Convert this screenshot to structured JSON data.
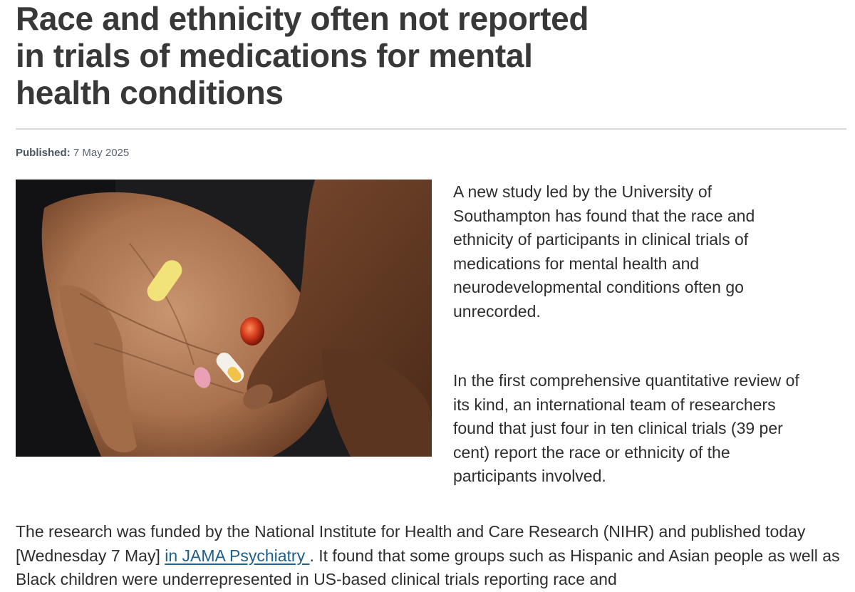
{
  "article": {
    "title": "Race and ethnicity often not reported in trials of medications for mental health conditions",
    "published_label": "Published:",
    "published_date": "7 May 2025",
    "paragraphs": [
      "A new study led by the University of Southampton has found that the race and ethnicity of participants in clinical trials of medications for mental health and neurodevelopmental conditions often go unrecorded.",
      "In the first comprehensive quantitative review of its kind, an international team of researchers found that just four in ten clinical trials (39 per cent) report the race or ethnicity of the participants involved."
    ],
    "body": {
      "before_link": "The research was funded by the National Institute for Health and Care Research (NIHR) and published today [Wednesday 7 May] ",
      "link_text": "in JAMA Psychiatry ",
      "after_link": ". It found that some groups such as Hispanic and Asian people as well as Black children were underrepresented in US-based clinical trials reporting race and"
    }
  },
  "image": {
    "subject": "hand-holding-pills-photo",
    "colors": {
      "background": "#1c1c1e",
      "skin": "#b07a56",
      "skin_shadow": "#8a5a3c",
      "pill_yellow": "#f2e27a",
      "pill_red": "#d23a1a",
      "pill_pink": "#eaa0b4",
      "pill_white": "#f4f1ea"
    }
  }
}
